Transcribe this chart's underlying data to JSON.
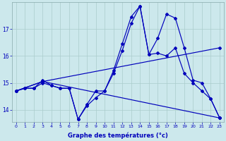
{
  "xlabel": "Graphe des températures (°c)",
  "background_color": "#cce8ec",
  "line_color": "#0000bb",
  "grid_color": "#aacccc",
  "x_min": -0.5,
  "x_max": 23.5,
  "y_min": 13.55,
  "y_max": 18.0,
  "yticks": [
    14,
    15,
    16,
    17
  ],
  "xticks": [
    0,
    1,
    2,
    3,
    4,
    5,
    6,
    7,
    8,
    9,
    10,
    11,
    12,
    13,
    14,
    15,
    16,
    17,
    18,
    19,
    20,
    21,
    22,
    23
  ],
  "series": [
    {
      "x": [
        0,
        1,
        2,
        3,
        4,
        5,
        6,
        7,
        8,
        9,
        10,
        11,
        12,
        13,
        14,
        15,
        16,
        17,
        18,
        19,
        20,
        21,
        22,
        23
      ],
      "y": [
        14.7,
        14.8,
        14.8,
        15.0,
        14.9,
        14.8,
        14.8,
        13.65,
        14.15,
        14.45,
        14.7,
        15.35,
        16.2,
        17.2,
        17.85,
        16.05,
        16.1,
        16.0,
        16.3,
        15.35,
        15.0,
        14.7,
        14.4,
        13.7
      ]
    },
    {
      "x": [
        0,
        1,
        2,
        3,
        4,
        5,
        6,
        7,
        8,
        9,
        10,
        11,
        12,
        13,
        14,
        15,
        16,
        17,
        18,
        19,
        20,
        21,
        22,
        23
      ],
      "y": [
        14.7,
        14.8,
        14.8,
        15.1,
        14.9,
        14.8,
        14.8,
        13.65,
        14.2,
        14.7,
        14.7,
        15.45,
        16.45,
        17.45,
        17.85,
        16.05,
        16.65,
        17.55,
        17.4,
        16.3,
        15.1,
        15.0,
        14.4,
        13.7
      ]
    },
    {
      "x": [
        0,
        3,
        23
      ],
      "y": [
        14.7,
        15.05,
        16.3
      ]
    },
    {
      "x": [
        0,
        3,
        23
      ],
      "y": [
        14.7,
        15.05,
        13.7
      ]
    }
  ]
}
